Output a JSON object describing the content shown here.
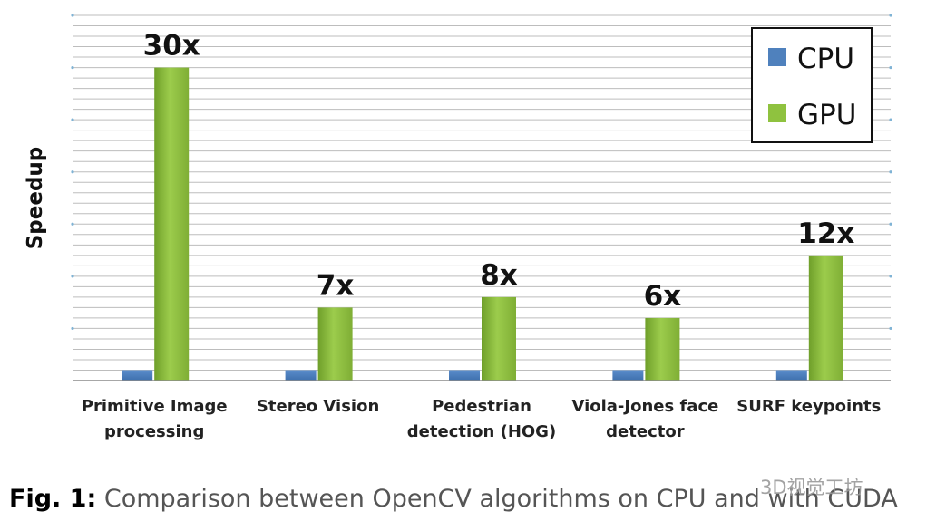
{
  "chart_data": {
    "type": "bar",
    "title": "",
    "xlabel": "",
    "ylabel": "Speedup",
    "ylim": [
      0,
      35
    ],
    "grid": true,
    "legend_position": "top-right",
    "categories": [
      [
        "Primitive Image",
        "processing"
      ],
      [
        "Stereo Vision"
      ],
      [
        "Pedestrian",
        "detection (HOG)"
      ],
      [
        "Viola-Jones face",
        "detector"
      ],
      [
        "SURF keypoints"
      ]
    ],
    "series": [
      {
        "name": "CPU",
        "color": "#4f81bd",
        "values": [
          1,
          1,
          1,
          1,
          1
        ]
      },
      {
        "name": "GPU",
        "color": "#8fc23f",
        "values": [
          30,
          7,
          8,
          6,
          12
        ]
      }
    ],
    "data_labels": [
      "30x",
      "7x",
      "8x",
      "6x",
      "12x"
    ]
  },
  "caption": {
    "prefix": "Fig. 1:",
    "text": " Comparison between OpenCV algorithms on CPU and with CUDA"
  },
  "watermark": "3D视觉工坊"
}
